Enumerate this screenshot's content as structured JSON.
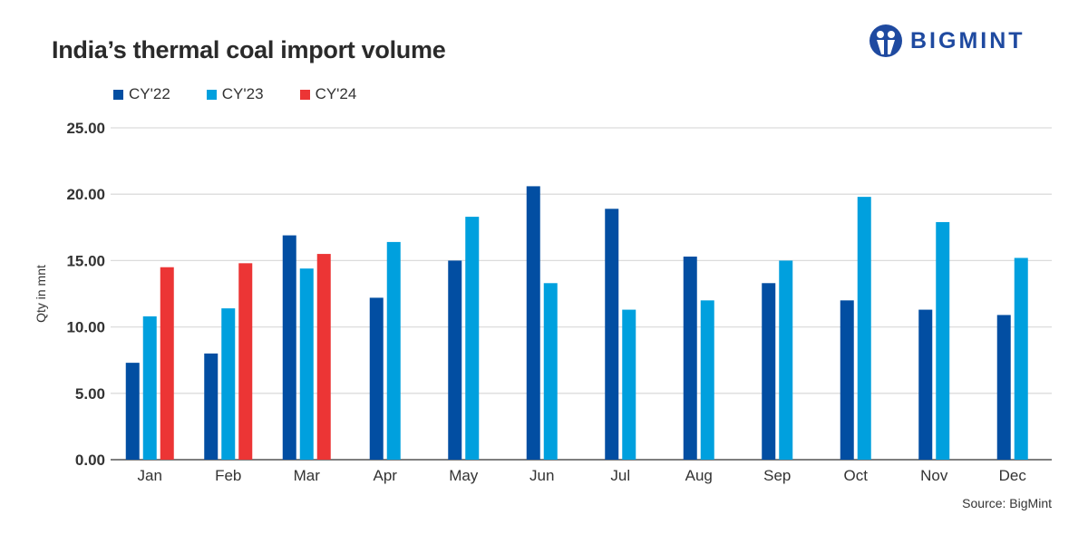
{
  "header": {
    "title": "India’s thermal coal import volume",
    "logo_text": "BIGMINT"
  },
  "source": "Source: BigMint",
  "chart_data": {
    "type": "bar",
    "title": "India’s thermal coal import volume",
    "xlabel": "",
    "ylabel": "Qty in mnt",
    "ylim": [
      0,
      25
    ],
    "yticks": [
      "0.00",
      "5.00",
      "10.00",
      "15.00",
      "20.00",
      "25.00"
    ],
    "grid": true,
    "legend": "top-left",
    "categories": [
      "Jan",
      "Feb",
      "Mar",
      "Apr",
      "May",
      "Jun",
      "Jul",
      "Aug",
      "Sep",
      "Oct",
      "Nov",
      "Dec"
    ],
    "series": [
      {
        "name": "CY'22",
        "color": "#024ea2",
        "values": [
          7.3,
          8.0,
          16.9,
          12.2,
          15.0,
          20.6,
          18.9,
          15.3,
          13.3,
          12.0,
          11.3,
          10.9
        ]
      },
      {
        "name": "CY'23",
        "color": "#00a0de",
        "values": [
          10.8,
          11.4,
          14.4,
          16.4,
          18.3,
          13.3,
          11.3,
          12.0,
          15.0,
          19.8,
          17.9,
          15.2
        ]
      },
      {
        "name": "CY'24",
        "color": "#ec3535",
        "values": [
          14.5,
          14.8,
          15.5,
          null,
          null,
          null,
          null,
          null,
          null,
          null,
          null,
          null
        ]
      }
    ]
  }
}
